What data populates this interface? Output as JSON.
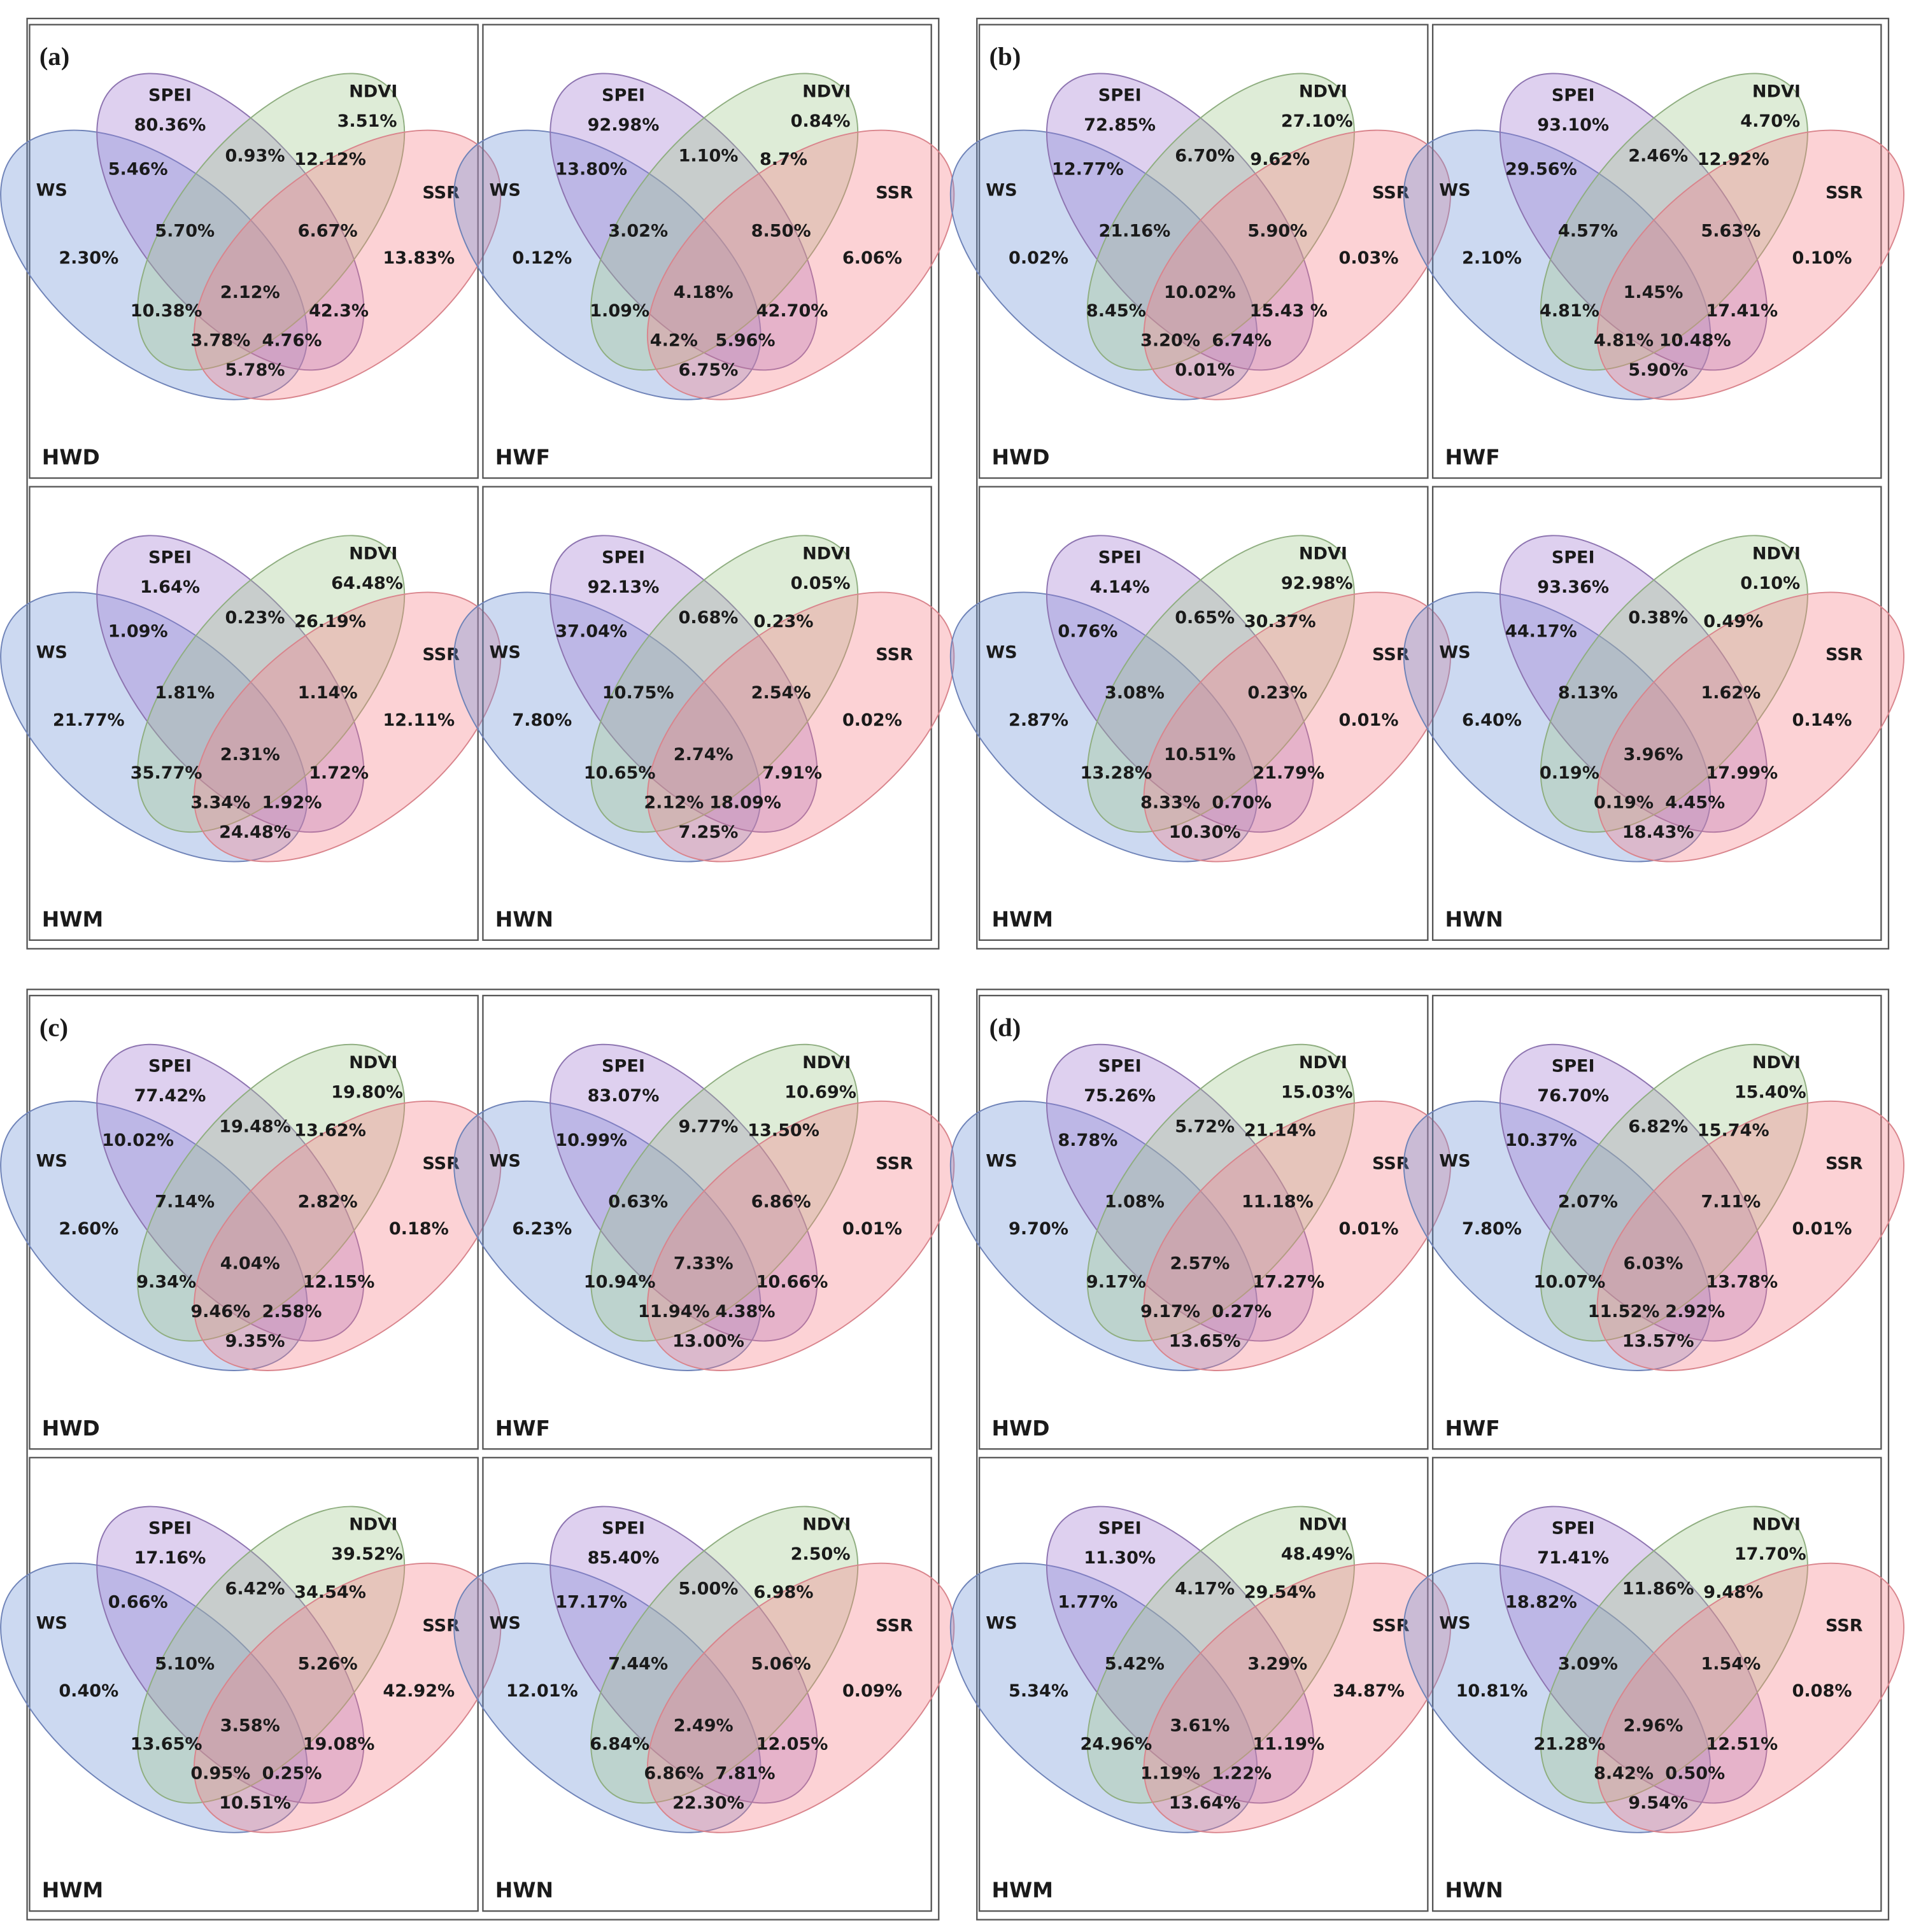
{
  "sets": [
    "SPEI",
    "NDVI",
    "WS",
    "SSR"
  ],
  "panels": [
    {
      "label": "(a)",
      "diagrams": [
        {
          "name": "HWD",
          "regions": [
            "80.36%",
            "3.51%",
            "2.30%",
            "13.83%",
            "5.46%",
            "0.93%",
            "12.12%",
            "5.70%",
            "6.67%",
            "2.12%",
            "10.38%",
            "42.3%",
            "3.78%",
            "4.76%",
            "5.78%"
          ]
        },
        {
          "name": "HWF",
          "regions": [
            "92.98%",
            "0.84%",
            "0.12%",
            "6.06%",
            "13.80%",
            "1.10%",
            "8.7%",
            "3.02%",
            "8.50%",
            "4.18%",
            "1.09%",
            "42.70%",
            "4.2%",
            "5.96%",
            "6.75%"
          ]
        },
        {
          "name": "HWM",
          "regions": [
            "1.64%",
            "64.48%",
            "21.77%",
            "12.11%",
            "1.09%",
            "0.23%",
            "26.19%",
            "1.81%",
            "1.14%",
            "2.31%",
            "35.77%",
            "1.72%",
            "3.34%",
            "1.92%",
            "24.48%"
          ]
        },
        {
          "name": "HWN",
          "regions": [
            "92.13%",
            "0.05%",
            "7.80%",
            "0.02%",
            "37.04%",
            "0.68%",
            "0.23%",
            "10.75%",
            "2.54%",
            "2.74%",
            "10.65%",
            "7.91%",
            "2.12%",
            "18.09%",
            "7.25%"
          ]
        }
      ]
    },
    {
      "label": "(b)",
      "diagrams": [
        {
          "name": "HWD",
          "regions": [
            "72.85%",
            "27.10%",
            "0.02%",
            "0.03%",
            "12.77%",
            "6.70%",
            "9.62%",
            "21.16%",
            "5.90%",
            "10.02%",
            "8.45%",
            "15.43 %",
            "3.20%",
            "6.74%",
            "0.01%"
          ]
        },
        {
          "name": "HWF",
          "regions": [
            "93.10%",
            "4.70%",
            "2.10%",
            "0.10%",
            "29.56%",
            "2.46%",
            "12.92%",
            "4.57%",
            "5.63%",
            "1.45%",
            "4.81%",
            "17.41%",
            "4.81%",
            "10.48%",
            "5.90%"
          ]
        },
        {
          "name": "HWM",
          "regions": [
            "4.14%",
            "92.98%",
            "2.87%",
            "0.01%",
            "0.76%",
            "0.65%",
            "30.37%",
            "3.08%",
            "0.23%",
            "10.51%",
            "13.28%",
            "21.79%",
            "8.33%",
            "0.70%",
            "10.30%"
          ]
        },
        {
          "name": "HWN",
          "regions": [
            "93.36%",
            "0.10%",
            "6.40%",
            "0.14%",
            "44.17%",
            "0.38%",
            "0.49%",
            "8.13%",
            "1.62%",
            "3.96%",
            "0.19%",
            "17.99%",
            "0.19%",
            "4.45%",
            "18.43%"
          ]
        }
      ]
    },
    {
      "label": "(c)",
      "diagrams": [
        {
          "name": "HWD",
          "regions": [
            "77.42%",
            "19.80%",
            "2.60%",
            "0.18%",
            "10.02%",
            "19.48%",
            "13.62%",
            "7.14%",
            "2.82%",
            "4.04%",
            "9.34%",
            "12.15%",
            "9.46%",
            "2.58%",
            "9.35%"
          ]
        },
        {
          "name": "HWF",
          "regions": [
            "83.07%",
            "10.69%",
            "6.23%",
            "0.01%",
            "10.99%",
            "9.77%",
            "13.50%",
            "0.63%",
            "6.86%",
            "7.33%",
            "10.94%",
            "10.66%",
            "11.94%",
            "4.38%",
            "13.00%"
          ]
        },
        {
          "name": "HWM",
          "regions": [
            "17.16%",
            "39.52%",
            "0.40%",
            "42.92%",
            "0.66%",
            "6.42%",
            "34.54%",
            "5.10%",
            "5.26%",
            "3.58%",
            "13.65%",
            "19.08%",
            "0.95%",
            "0.25%",
            "10.51%"
          ]
        },
        {
          "name": "HWN",
          "regions": [
            "85.40%",
            "2.50%",
            "12.01%",
            "0.09%",
            "17.17%",
            "5.00%",
            "6.98%",
            "7.44%",
            "5.06%",
            "2.49%",
            "6.84%",
            "12.05%",
            "6.86%",
            "7.81%",
            "22.30%"
          ]
        }
      ]
    },
    {
      "label": "(d)",
      "diagrams": [
        {
          "name": "HWD",
          "regions": [
            "75.26%",
            "15.03%",
            "9.70%",
            "0.01%",
            "8.78%",
            "5.72%",
            "21.14%",
            "1.08%",
            "11.18%",
            "2.57%",
            "9.17%",
            "17.27%",
            "9.17%",
            "0.27%",
            "13.65%"
          ]
        },
        {
          "name": "HWF",
          "regions": [
            "76.70%",
            "15.40%",
            "7.80%",
            "0.01%",
            "10.37%",
            "6.82%",
            "15.74%",
            "2.07%",
            "7.11%",
            "6.03%",
            "10.07%",
            "13.78%",
            "11.52%",
            "2.92%",
            "13.57%"
          ]
        },
        {
          "name": "HWM",
          "regions": [
            "11.30%",
            "48.49%",
            "5.34%",
            "34.87%",
            "1.77%",
            "4.17%",
            "29.54%",
            "5.42%",
            "3.29%",
            "3.61%",
            "24.96%",
            "11.19%",
            "1.19%",
            "1.22%",
            "13.64%"
          ]
        },
        {
          "name": "HWN",
          "regions": [
            "71.41%",
            "17.70%",
            "10.81%",
            "0.08%",
            "18.82%",
            "11.86%",
            "9.48%",
            "3.09%",
            "1.54%",
            "2.96%",
            "21.28%",
            "12.51%",
            "8.42%",
            "0.50%",
            "9.54%"
          ]
        }
      ]
    }
  ]
}
